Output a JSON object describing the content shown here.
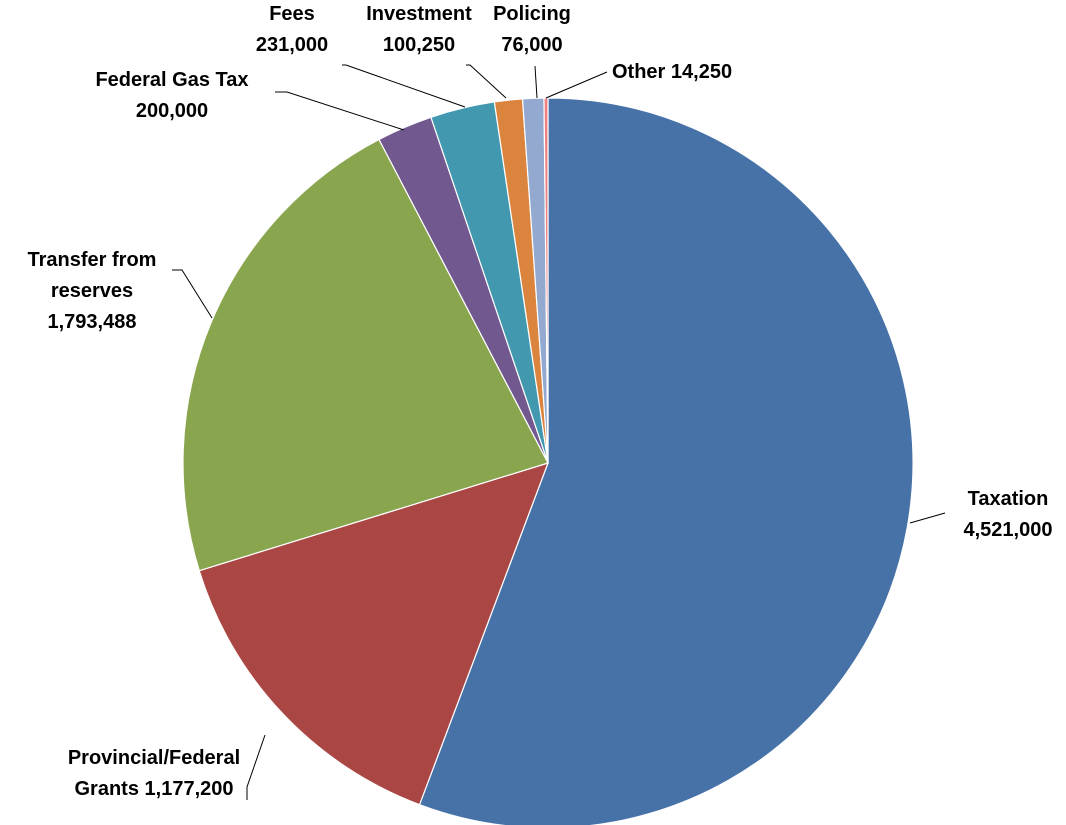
{
  "chart_data": {
    "type": "pie",
    "title": "",
    "start_angle_deg": 0,
    "direction": "clockwise",
    "slices": [
      {
        "name": "Taxation",
        "value": 4521000,
        "value_label": "4,521,000",
        "color": "#4672A8",
        "label_lines": [
          "Taxation",
          "4,521,000"
        ]
      },
      {
        "name": "Provincial/Federal Grants",
        "value": 1177200,
        "value_label": "1,177,200",
        "color": "#AA4643",
        "label_lines": [
          "Provincial/Federal",
          "Grants  1,177,200"
        ]
      },
      {
        "name": "Transfer from reserves",
        "value": 1793488,
        "value_label": "1,793,488",
        "color": "#89A54E",
        "label_lines": [
          "Transfer from",
          "reserves",
          "1,793,488"
        ]
      },
      {
        "name": "Federal Gas Tax",
        "value": 200000,
        "value_label": "200,000",
        "color": "#71588F",
        "label_lines": [
          "Federal Gas Tax",
          "200,000"
        ]
      },
      {
        "name": "Fees",
        "value": 231000,
        "value_label": "231,000",
        "color": "#4198AF",
        "label_lines": [
          "Fees",
          "231,000"
        ]
      },
      {
        "name": "Investment",
        "value": 100250,
        "value_label": "100,250",
        "color": "#DB843D",
        "label_lines": [
          "Investment",
          "100,250"
        ]
      },
      {
        "name": "Policing",
        "value": 76000,
        "value_label": "76,000",
        "color": "#93A9CF",
        "label_lines": [
          "Policing",
          "76,000"
        ]
      },
      {
        "name": "Other",
        "value": 14250,
        "value_label": "14,250",
        "color": "#F08080",
        "label_lines": [
          "Other 14,250"
        ]
      }
    ]
  }
}
